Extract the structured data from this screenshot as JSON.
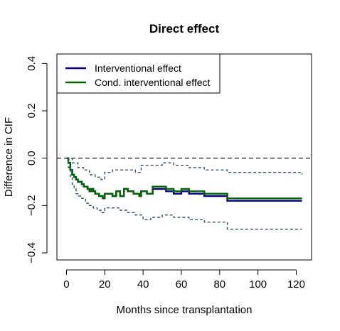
{
  "chart_data": {
    "type": "line",
    "title": "Direct effect",
    "xlabel": "Months since transplantation",
    "ylabel": "Difference in CIF",
    "xlim": [
      -5,
      128
    ],
    "ylim": [
      -0.43,
      0.44
    ],
    "xticks": [
      0,
      20,
      40,
      60,
      80,
      100,
      120
    ],
    "yticks": [
      -0.4,
      -0.2,
      0.0,
      0.2,
      0.4
    ],
    "xtick_labels": [
      "0",
      "20",
      "40",
      "60",
      "80",
      "100",
      "120"
    ],
    "ytick_labels": [
      "−0.4",
      "−0.2",
      "0.0",
      "0.2",
      "0.4"
    ],
    "reference_line": {
      "y": 0.0,
      "style": "dashed",
      "color": "#000000"
    },
    "legend": {
      "position": "top-left"
    },
    "grid": false,
    "series": [
      {
        "name": "Interventional effect",
        "color": "#000080",
        "style": "solid",
        "step": true,
        "legend": true,
        "x": [
          0,
          1,
          2,
          3,
          4,
          5,
          6,
          7,
          8,
          9,
          10,
          11,
          12,
          13,
          14,
          15,
          16,
          17,
          18,
          19,
          20,
          22,
          24,
          26,
          28,
          30,
          32,
          35,
          38,
          39,
          42,
          45,
          48,
          52,
          56,
          60,
          64,
          72,
          84,
          123
        ],
        "y": [
          0.0,
          -0.02,
          -0.05,
          -0.07,
          -0.08,
          -0.09,
          -0.1,
          -0.1,
          -0.11,
          -0.12,
          -0.12,
          -0.13,
          -0.14,
          -0.13,
          -0.14,
          -0.15,
          -0.15,
          -0.16,
          -0.16,
          -0.17,
          -0.15,
          -0.15,
          -0.16,
          -0.14,
          -0.16,
          -0.13,
          -0.14,
          -0.15,
          -0.16,
          -0.14,
          -0.15,
          -0.13,
          -0.13,
          -0.14,
          -0.15,
          -0.14,
          -0.15,
          -0.16,
          -0.18,
          -0.18
        ]
      },
      {
        "name": "Cond. interventional effect",
        "color": "#006400",
        "style": "solid",
        "step": true,
        "legend": true,
        "x": [
          0,
          1,
          2,
          3,
          4,
          5,
          6,
          7,
          8,
          9,
          10,
          11,
          12,
          13,
          14,
          15,
          16,
          17,
          18,
          19,
          20,
          22,
          24,
          26,
          28,
          30,
          32,
          35,
          38,
          39,
          42,
          45,
          48,
          52,
          56,
          60,
          64,
          72,
          84,
          123
        ],
        "y": [
          0.0,
          -0.02,
          -0.05,
          -0.07,
          -0.08,
          -0.09,
          -0.1,
          -0.1,
          -0.11,
          -0.12,
          -0.12,
          -0.13,
          -0.14,
          -0.13,
          -0.14,
          -0.15,
          -0.15,
          -0.16,
          -0.16,
          -0.17,
          -0.15,
          -0.15,
          -0.16,
          -0.14,
          -0.16,
          -0.13,
          -0.14,
          -0.15,
          -0.16,
          -0.14,
          -0.15,
          -0.12,
          -0.12,
          -0.13,
          -0.14,
          -0.13,
          -0.14,
          -0.15,
          -0.17,
          -0.17
        ]
      },
      {
        "name": "",
        "color": "#2f4f6f",
        "style": "dashed",
        "step": true,
        "legend": false,
        "x": [
          0,
          3,
          6,
          9,
          12,
          15,
          18,
          20,
          24,
          28,
          32,
          36,
          39,
          44,
          50,
          56,
          64,
          72,
          84,
          123
        ],
        "y": [
          0.0,
          -0.02,
          -0.04,
          -0.05,
          -0.07,
          -0.08,
          -0.09,
          -0.06,
          -0.05,
          -0.05,
          -0.05,
          -0.06,
          -0.03,
          -0.03,
          -0.02,
          -0.03,
          -0.04,
          -0.05,
          -0.06,
          -0.07
        ]
      },
      {
        "name": "",
        "color": "#2f4f6f",
        "style": "dashed",
        "step": true,
        "legend": false,
        "x": [
          0,
          1,
          2,
          3,
          4,
          5,
          6,
          8,
          10,
          12,
          14,
          16,
          18,
          20,
          24,
          28,
          32,
          36,
          40,
          44,
          50,
          56,
          64,
          72,
          84,
          123
        ],
        "y": [
          0.0,
          -0.04,
          -0.08,
          -0.11,
          -0.13,
          -0.15,
          -0.16,
          -0.17,
          -0.19,
          -0.2,
          -0.21,
          -0.22,
          -0.23,
          -0.21,
          -0.21,
          -0.22,
          -0.23,
          -0.24,
          -0.26,
          -0.25,
          -0.24,
          -0.25,
          -0.26,
          -0.27,
          -0.3,
          -0.3
        ]
      }
    ]
  }
}
